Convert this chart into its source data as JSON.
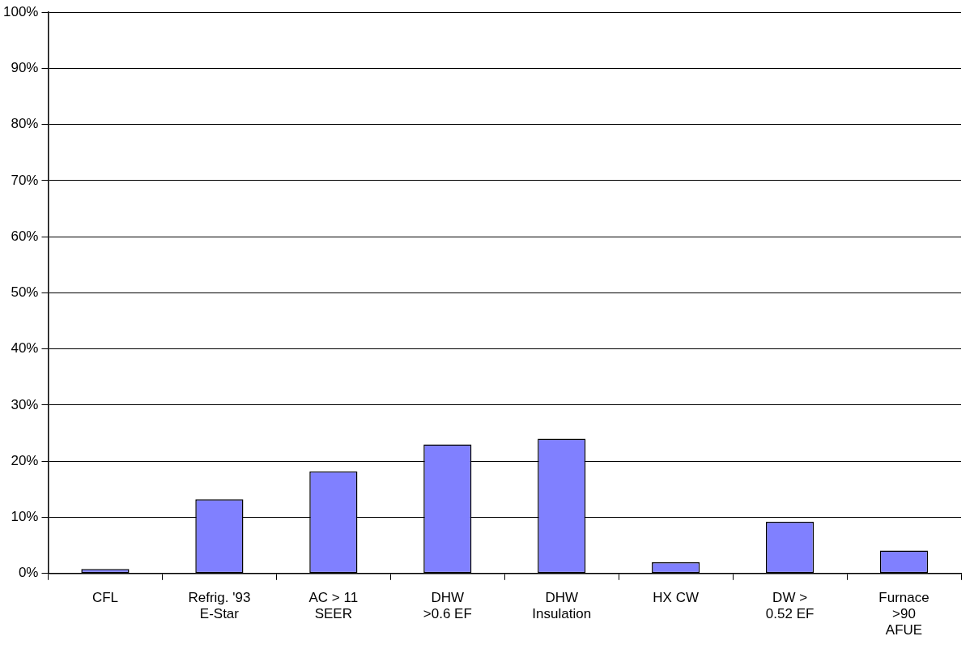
{
  "chart_data": {
    "type": "bar",
    "categories": [
      "CFL",
      "Refrig. '93\nE-Star",
      "AC > 11\nSEER",
      "DHW\n>0.6 EF",
      "DHW\nInsulation",
      "HX CW",
      "DW >\n0.52 EF",
      "Furnace\n>90\nAFUE"
    ],
    "values": [
      0.8,
      13.2,
      18.2,
      23.0,
      24.0,
      2.0,
      9.2,
      4.1
    ],
    "color": "#8080ff",
    "ylim": [
      0,
      100
    ],
    "yticks": [
      {
        "value": 0,
        "label": "0%"
      },
      {
        "value": 10,
        "label": "10%"
      },
      {
        "value": 20,
        "label": "20%"
      },
      {
        "value": 30,
        "label": "30%"
      },
      {
        "value": 40,
        "label": "40%"
      },
      {
        "value": 50,
        "label": "50%"
      },
      {
        "value": 60,
        "label": "60%"
      },
      {
        "value": 70,
        "label": "70%"
      },
      {
        "value": 80,
        "label": "80%"
      },
      {
        "value": 90,
        "label": "90%"
      },
      {
        "value": 100,
        "label": "100%"
      }
    ],
    "grid": "y",
    "legend": false
  }
}
